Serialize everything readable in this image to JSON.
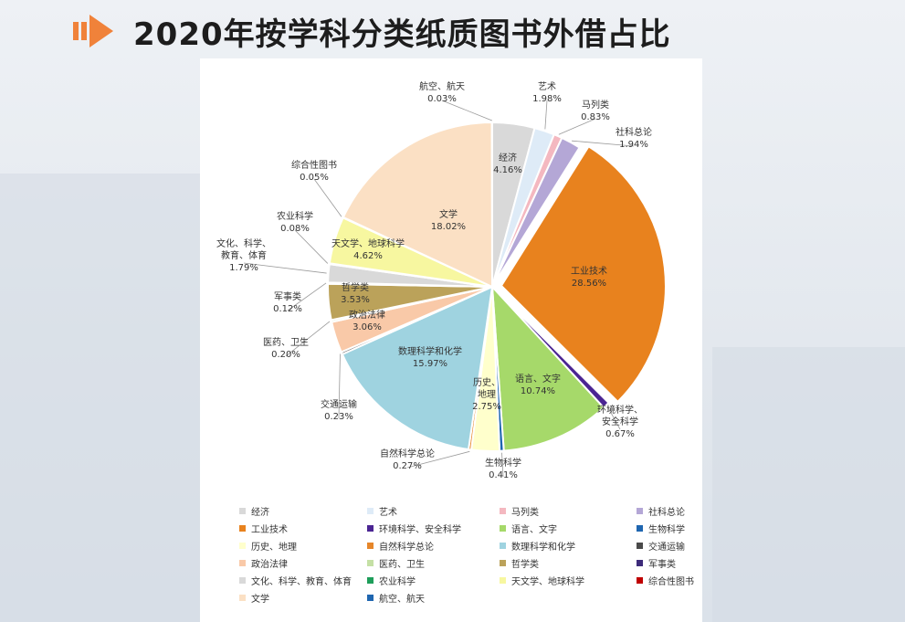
{
  "page": {
    "title": "2020年按学科分类纸质图书外借占比"
  },
  "colors": {
    "accent": "#f0823a",
    "title": "#1d1d1d"
  },
  "chart_data": {
    "type": "pie",
    "title": "2020年按学科分类纸质图书外借占比",
    "slices": [
      {
        "name": "经济",
        "value": 4.16,
        "label": "4.16%",
        "color": "#d9d9d9"
      },
      {
        "name": "艺术",
        "value": 1.98,
        "label": "1.98%",
        "color": "#deebf7"
      },
      {
        "name": "马列类",
        "value": 0.83,
        "label": "0.83%",
        "color": "#f4b8c0"
      },
      {
        "name": "社科总论",
        "value": 1.94,
        "label": "1.94%",
        "color": "#b4a7d6"
      },
      {
        "name": "工业技术",
        "value": 28.56,
        "label": "28.56%",
        "color": "#e8821e"
      },
      {
        "name": "环境科学、安全科学",
        "value": 0.67,
        "label": "0.67%",
        "color": "#4b2593"
      },
      {
        "name": "语言、文字",
        "value": 10.74,
        "label": "10.74%",
        "color": "#a6d96a"
      },
      {
        "name": "生物科学",
        "value": 0.41,
        "label": "0.41%",
        "color": "#1f66b0"
      },
      {
        "name": "历史、地理",
        "value": 2.75,
        "label": "2.75%",
        "color": "#ffffcc"
      },
      {
        "name": "自然科学总论",
        "value": 0.27,
        "label": "0.27%",
        "color": "#e6862a"
      },
      {
        "name": "数理科学和化学",
        "value": 15.97,
        "label": "15.97%",
        "color": "#9fd3e0"
      },
      {
        "name": "交通运输",
        "value": 0.23,
        "label": "0.23%",
        "color": "#4a4a4a"
      },
      {
        "name": "政治法律",
        "value": 3.06,
        "label": "3.06%",
        "color": "#f9c9a8"
      },
      {
        "name": "医药、卫生",
        "value": 0.2,
        "label": "0.20%",
        "color": "#c5e0a5"
      },
      {
        "name": "哲学类",
        "value": 3.53,
        "label": "3.53%",
        "color": "#bba25a"
      },
      {
        "name": "军事类",
        "value": 0.12,
        "label": "0.12%",
        "color": "#3d2b7a"
      },
      {
        "name": "文化、科学、教育、体育",
        "value": 1.79,
        "label": "1.79%",
        "color": "#d9d9d9"
      },
      {
        "name": "农业科学",
        "value": 0.08,
        "label": "0.08%",
        "color": "#1e9e5a"
      },
      {
        "name": "天文学、地球科学",
        "value": 4.62,
        "label": "4.62%",
        "color": "#f7f7a0"
      },
      {
        "name": "综合性图书",
        "value": 0.05,
        "label": "0.05%",
        "color": "#c00000"
      },
      {
        "name": "文学",
        "value": 18.02,
        "label": "18.02%",
        "color": "#fbe0c4"
      },
      {
        "name": "航空、航天",
        "value": 0.03,
        "label": "0.03%",
        "color": "#1f66b0"
      }
    ],
    "callouts": [
      {
        "index": 0,
        "lines": [
          "经济",
          "4.16%"
        ]
      },
      {
        "index": 1,
        "lines": [
          "艺术",
          "1.98%"
        ]
      },
      {
        "index": 2,
        "lines": [
          "马列类",
          "0.83%"
        ]
      },
      {
        "index": 3,
        "lines": [
          "社科总论",
          "1.94%"
        ]
      },
      {
        "index": 4,
        "lines": [
          "工业技术",
          "28.56%"
        ]
      },
      {
        "index": 5,
        "lines": [
          "环境科学、",
          "安全科学",
          "0.67%"
        ]
      },
      {
        "index": 6,
        "lines": [
          "语言、文字",
          "10.74%"
        ]
      },
      {
        "index": 7,
        "lines": [
          "生物科学",
          "0.41%"
        ]
      },
      {
        "index": 8,
        "lines": [
          "历史、",
          "地理",
          "2.75%"
        ]
      },
      {
        "index": 9,
        "lines": [
          "自然科学总论",
          "0.27%"
        ]
      },
      {
        "index": 10,
        "lines": [
          "数理科学和化学",
          "15.97%"
        ]
      },
      {
        "index": 11,
        "lines": [
          "交通运输",
          "0.23%"
        ]
      },
      {
        "index": 12,
        "lines": [
          "政治法律",
          "3.06%"
        ]
      },
      {
        "index": 13,
        "lines": [
          "医药、卫生",
          "0.20%"
        ]
      },
      {
        "index": 14,
        "lines": [
          "哲学类",
          "3.53%"
        ]
      },
      {
        "index": 15,
        "lines": [
          "军事类",
          "0.12%"
        ]
      },
      {
        "index": 16,
        "lines": [
          "文化、科学、",
          "教育、体育",
          "1.79%"
        ]
      },
      {
        "index": 17,
        "lines": [
          "农业科学",
          "0.08%"
        ]
      },
      {
        "index": 18,
        "lines": [
          "天文学、地球科学",
          "4.62%"
        ]
      },
      {
        "index": 19,
        "lines": [
          "综合性图书",
          "0.05%"
        ]
      },
      {
        "index": 20,
        "lines": [
          "文学",
          "18.02%"
        ]
      },
      {
        "index": 21,
        "lines": [
          "航空、航天",
          "0.03%"
        ]
      }
    ],
    "legend": {
      "position": "bottom",
      "columns": 4,
      "items": [
        {
          "label": "经济",
          "color": "#d9d9d9"
        },
        {
          "label": "艺术",
          "color": "#deebf7"
        },
        {
          "label": "马列类",
          "color": "#f4b8c0"
        },
        {
          "label": "社科总论",
          "color": "#b4a7d6"
        },
        {
          "label": "工业技术",
          "color": "#e8821e"
        },
        {
          "label": "环境科学、安全科学",
          "color": "#4b2593"
        },
        {
          "label": "语言、文字",
          "color": "#a6d96a"
        },
        {
          "label": "生物科学",
          "color": "#1f66b0"
        },
        {
          "label": "历史、地理",
          "color": "#ffffcc"
        },
        {
          "label": "自然科学总论",
          "color": "#e6862a"
        },
        {
          "label": "数理科学和化学",
          "color": "#9fd3e0"
        },
        {
          "label": "交通运输",
          "color": "#4a4a4a"
        },
        {
          "label": "政治法律",
          "color": "#f9c9a8"
        },
        {
          "label": "医药、卫生",
          "color": "#c5e0a5"
        },
        {
          "label": "哲学类",
          "color": "#bba25a"
        },
        {
          "label": "军事类",
          "color": "#3d2b7a"
        },
        {
          "label": "文化、科学、教育、体育",
          "color": "#d9d9d9"
        },
        {
          "label": "农业科学",
          "color": "#1e9e5a"
        },
        {
          "label": "天文学、地球科学",
          "color": "#f7f7a0"
        },
        {
          "label": "综合性图书",
          "color": "#c00000"
        },
        {
          "label": "文学",
          "color": "#fbe0c4"
        },
        {
          "label": "航空、航天",
          "color": "#1f66b0"
        }
      ]
    }
  }
}
